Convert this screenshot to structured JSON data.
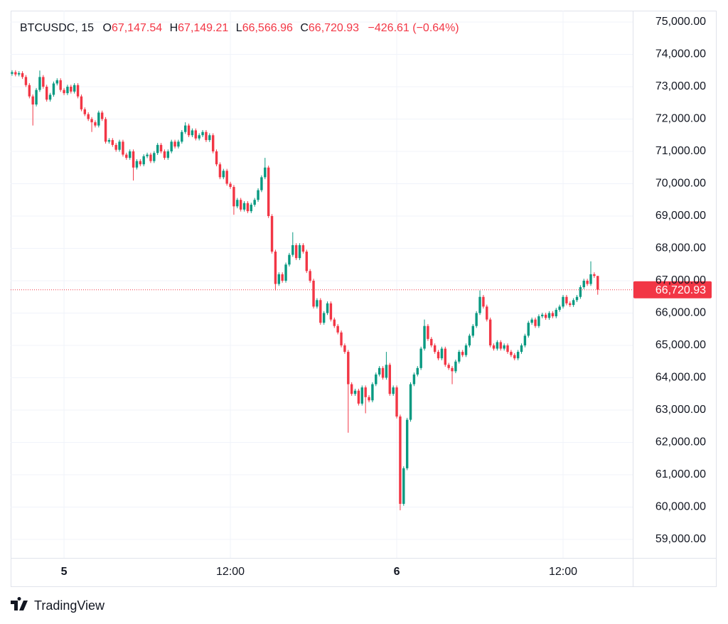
{
  "chart_data": {
    "type": "candlestick",
    "legend": {
      "symbol": "BTCUSDC, 15",
      "items": [
        {
          "key": "O",
          "value": "67,147.54"
        },
        {
          "key": "H",
          "value": "67,149.21"
        },
        {
          "key": "L",
          "value": "66,566.96"
        },
        {
          "key": "C",
          "value": "66,720.93"
        }
      ],
      "change": "−426.61 (−0.64%)"
    },
    "last_price_label": "66,720.93",
    "footer": "TradingView",
    "up_color": "#089981",
    "down_color": "#f23645",
    "grid": true,
    "xlim": [
      -0.4,
      179.1
    ],
    "xticks": [
      {
        "value": 15,
        "label": "5"
      },
      {
        "value": 63,
        "label": "12:00"
      },
      {
        "value": 111,
        "label": "6"
      },
      {
        "value": 159,
        "label": "12:00"
      }
    ],
    "ylim": [
      58428,
      75352
    ],
    "yticks": [
      {
        "value": 59000,
        "label": "59,000.00"
      },
      {
        "value": 60000,
        "label": "60,000.00"
      },
      {
        "value": 61000,
        "label": "61,000.00"
      },
      {
        "value": 62000,
        "label": "62,000.00"
      },
      {
        "value": 63000,
        "label": "63,000.00"
      },
      {
        "value": 64000,
        "label": "64,000.00"
      },
      {
        "value": 65000,
        "label": "65,000.00"
      },
      {
        "value": 66000,
        "label": "66,000.00"
      },
      {
        "value": 67000,
        "label": "67,000.00"
      },
      {
        "value": 68000,
        "label": "68,000.00"
      },
      {
        "value": 69000,
        "label": "69,000.00"
      },
      {
        "value": 70000,
        "label": "70,000.00"
      },
      {
        "value": 71000,
        "label": "71,000.00"
      },
      {
        "value": 72000,
        "label": "72,000.00"
      },
      {
        "value": 73000,
        "label": "73,000.00"
      },
      {
        "value": 74000,
        "label": "74,000.00"
      },
      {
        "value": 75000,
        "label": "75,000.00"
      }
    ],
    "open": [
      73400,
      73450,
      73380,
      73420,
      73300,
      73050,
      72700,
      72450,
      72900,
      73300,
      73000,
      72600,
      72750,
      73100,
      73200,
      72900,
      72800,
      73000,
      72850,
      73050,
      72700,
      72300,
      72150,
      72000,
      71900,
      71800,
      72200,
      72000,
      71300,
      71350,
      71200,
      71050,
      71300,
      70900,
      70800,
      71000,
      70500,
      70700,
      70600,
      70850,
      70900,
      70700,
      70950,
      71200,
      71000,
      70800,
      71000,
      71300,
      71150,
      71300,
      71600,
      71800,
      71500,
      71650,
      71400,
      71500,
      71600,
      71350,
      71500,
      71000,
      70600,
      70200,
      70400,
      70000,
      69900,
      69300,
      69500,
      69200,
      69400,
      69150,
      69350,
      69500,
      69800,
      70200,
      70500,
      69000,
      67900,
      66900,
      67200,
      67000,
      67500,
      67800,
      68100,
      67700,
      68100,
      67900,
      67300,
      67000,
      66200,
      66400,
      65700,
      66000,
      66300,
      65800,
      65600,
      65400,
      65000,
      64800,
      63800,
      63500,
      63600,
      63200,
      63700,
      63400,
      63300,
      63800,
      64100,
      64300,
      64000,
      64400,
      63500,
      63700,
      62800,
      60100,
      61200,
      62700,
      63800,
      64100,
      64300,
      64900,
      65600,
      65200,
      65000,
      64800,
      64600,
      64900,
      64400,
      64300,
      64200,
      64500,
      64800,
      64700,
      65000,
      65300,
      65600,
      66000,
      66500,
      66200,
      65800,
      65000,
      64900,
      65100,
      64900,
      65000,
      64800,
      64700,
      64600,
      64800,
      65000,
      65300,
      65700,
      65800,
      65600,
      65900,
      65950,
      65850,
      66000,
      65900,
      66100,
      66200,
      66500,
      66300,
      66250,
      66400,
      66500,
      66800,
      67000,
      66900,
      67200,
      67147.54
    ],
    "high": [
      73510,
      73510,
      73480,
      73480,
      73360,
      73110,
      72760,
      72960,
      73500,
      73360,
      73060,
      72810,
      73160,
      73260,
      73260,
      72960,
      73060,
      73060,
      73110,
      73110,
      72760,
      72360,
      72210,
      72060,
      71960,
      72260,
      72260,
      72060,
      71410,
      71410,
      71260,
      71360,
      71360,
      70960,
      71060,
      71060,
      70760,
      70760,
      70910,
      70960,
      70960,
      71010,
      71260,
      71260,
      71060,
      71060,
      71360,
      71360,
      71360,
      71660,
      71900,
      71860,
      71710,
      71710,
      71560,
      71660,
      71660,
      71560,
      71560,
      71060,
      70660,
      70460,
      70460,
      70060,
      69960,
      69560,
      69560,
      69460,
      69460,
      69410,
      69560,
      69860,
      70260,
      70800,
      70560,
      69060,
      67960,
      67260,
      67260,
      67560,
      67860,
      68500,
      68160,
      68160,
      68160,
      67960,
      67360,
      67060,
      66460,
      66460,
      66060,
      66360,
      66360,
      65860,
      65660,
      65460,
      65060,
      64860,
      63860,
      63660,
      63660,
      63760,
      63760,
      63460,
      63860,
      64160,
      64360,
      64360,
      64800,
      64460,
      63760,
      63760,
      62860,
      61260,
      62760,
      63860,
      64160,
      64360,
      64960,
      65800,
      65660,
      65260,
      65060,
      64860,
      64960,
      64960,
      64460,
      64360,
      64560,
      64860,
      64860,
      65060,
      65360,
      65660,
      66060,
      66700,
      66560,
      66260,
      65860,
      65060,
      65160,
      65160,
      65060,
      65060,
      64860,
      64760,
      64860,
      65060,
      65360,
      65760,
      65860,
      65860,
      65960,
      66010,
      66010,
      66060,
      66060,
      66160,
      66260,
      66560,
      66560,
      66360,
      66460,
      66560,
      66860,
      67060,
      67060,
      67600,
      67260,
      67149.21
    ],
    "low": [
      73340,
      73320,
      73320,
      73240,
      72990,
      72640,
      71800,
      72390,
      72840,
      72940,
      72540,
      72540,
      72690,
      73040,
      72840,
      72740,
      72740,
      72790,
      72790,
      72640,
      72240,
      72090,
      71940,
      71600,
      71740,
      71740,
      71940,
      71240,
      71240,
      71140,
      70990,
      70990,
      70840,
      70740,
      70740,
      70100,
      70440,
      70540,
      70540,
      70790,
      70640,
      70640,
      70890,
      70940,
      70740,
      70740,
      70940,
      71090,
      71090,
      71240,
      71540,
      71440,
      71440,
      71340,
      71340,
      71440,
      71290,
      71290,
      70940,
      70540,
      70140,
      70140,
      69940,
      69840,
      69040,
      69240,
      69140,
      69140,
      69090,
      69090,
      69290,
      69440,
      69740,
      70140,
      68940,
      67840,
      66700,
      66840,
      66940,
      66940,
      67440,
      67740,
      67640,
      67640,
      67840,
      67240,
      66940,
      66140,
      66140,
      65640,
      65640,
      65940,
      65740,
      65540,
      65340,
      64940,
      64740,
      62300,
      63440,
      63440,
      63140,
      63140,
      62900,
      63240,
      63240,
      63740,
      64040,
      63940,
      63940,
      63440,
      63440,
      62740,
      59900,
      60040,
      61140,
      62640,
      63740,
      64040,
      64240,
      64840,
      65140,
      64940,
      64740,
      64540,
      64540,
      64340,
      64240,
      63800,
      64140,
      64440,
      64640,
      64640,
      64940,
      65240,
      65540,
      65940,
      66140,
      65740,
      64940,
      64840,
      64840,
      64840,
      64840,
      64740,
      64640,
      64540,
      64540,
      64740,
      64940,
      65240,
      65640,
      65540,
      65540,
      65840,
      65790,
      65790,
      65840,
      65840,
      66040,
      66140,
      66240,
      66190,
      66190,
      66340,
      66440,
      66740,
      66840,
      66840,
      67087,
      66566.96
    ],
    "close": [
      73450,
      73380,
      73420,
      73300,
      73050,
      72700,
      72450,
      72900,
      73300,
      73000,
      72600,
      72750,
      73100,
      73200,
      72900,
      72800,
      73000,
      72850,
      73050,
      72700,
      72300,
      72150,
      72000,
      71900,
      71800,
      72200,
      72000,
      71300,
      71350,
      71200,
      71050,
      71300,
      70900,
      70800,
      71000,
      70500,
      70700,
      70600,
      70850,
      70900,
      70700,
      70950,
      71200,
      71000,
      70800,
      71000,
      71300,
      71150,
      71300,
      71600,
      71800,
      71500,
      71650,
      71400,
      71500,
      71600,
      71350,
      71500,
      71000,
      70600,
      70200,
      70400,
      70000,
      69900,
      69300,
      69500,
      69200,
      69400,
      69150,
      69350,
      69500,
      69800,
      70200,
      70500,
      69000,
      67900,
      66900,
      67200,
      67000,
      67500,
      67800,
      68100,
      67700,
      68100,
      67900,
      67300,
      67000,
      66200,
      66400,
      65700,
      66000,
      66300,
      65800,
      65600,
      65400,
      65000,
      64800,
      63800,
      63500,
      63600,
      63200,
      63700,
      63400,
      63300,
      63800,
      64100,
      64300,
      64000,
      64400,
      63500,
      63700,
      62800,
      60100,
      61200,
      62700,
      63800,
      64100,
      64300,
      64900,
      65600,
      65200,
      65000,
      64800,
      64600,
      64900,
      64400,
      64300,
      64200,
      64500,
      64800,
      64700,
      65000,
      65300,
      65600,
      66000,
      66500,
      66200,
      65800,
      65000,
      64900,
      65100,
      64900,
      65000,
      64800,
      64700,
      64600,
      64800,
      65000,
      65300,
      65700,
      65800,
      65600,
      65900,
      65950,
      65850,
      66000,
      65900,
      66100,
      66200,
      66500,
      66300,
      66250,
      66400,
      66500,
      66800,
      67000,
      66900,
      67200,
      67147.54,
      66720.93
    ]
  }
}
